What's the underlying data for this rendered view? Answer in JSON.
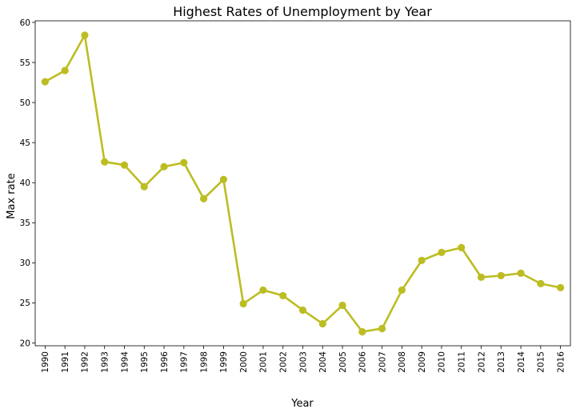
{
  "chart_data": {
    "type": "line",
    "title": "Highest Rates of Unemployment by Year",
    "xlabel": "Year",
    "ylabel": "Max rate",
    "x": [
      "1990",
      "1991",
      "1992",
      "1993",
      "1994",
      "1995",
      "1996",
      "1997",
      "1998",
      "1999",
      "2000",
      "2001",
      "2002",
      "2003",
      "2004",
      "2005",
      "2006",
      "2007",
      "2008",
      "2009",
      "2010",
      "2011",
      "2012",
      "2013",
      "2014",
      "2015",
      "2016"
    ],
    "series": [
      {
        "values": [
          52.6,
          54.0,
          58.4,
          42.6,
          42.2,
          39.5,
          42.0,
          42.5,
          38.0,
          40.4,
          24.9,
          26.6,
          25.9,
          24.1,
          22.4,
          24.7,
          21.4,
          21.8,
          26.6,
          30.3,
          31.3,
          31.9,
          28.2,
          28.4,
          28.7,
          27.4,
          26.9
        ],
        "color": "#bcbd22"
      }
    ],
    "ylim": [
      19.65,
      60.2
    ],
    "yticks": [
      20,
      25,
      30,
      35,
      40,
      45,
      50,
      55,
      60
    ],
    "grid": false,
    "legend": "none"
  }
}
